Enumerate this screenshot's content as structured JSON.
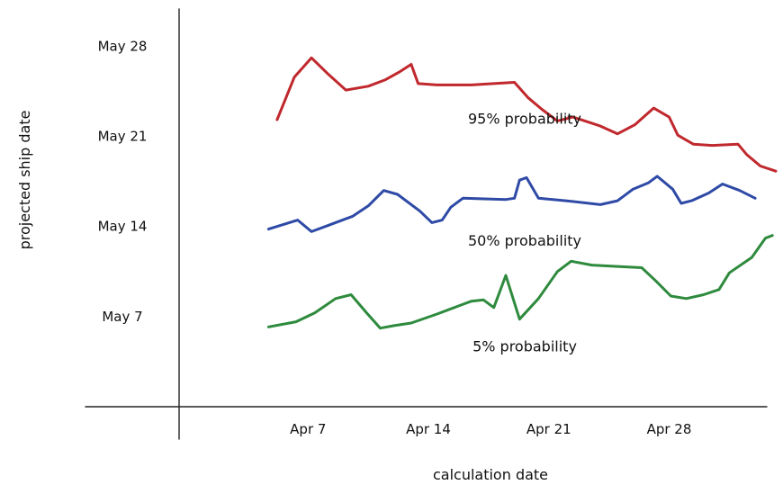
{
  "chart_data": {
    "type": "line",
    "title": "",
    "xlabel": "calculation date",
    "ylabel": "projected ship date",
    "x_ticks": [
      "Apr 7",
      "Apr 14",
      "Apr 21",
      "Apr 28"
    ],
    "y_ticks": [
      "May 7",
      "May 14",
      "May 21",
      "May 28"
    ],
    "x_tick_days": [
      7,
      14,
      21,
      28
    ],
    "y_tick_days": [
      7,
      14,
      21,
      28
    ],
    "xlim": [
      -0.5,
      34.2
    ],
    "ylim": [
      0,
      28.8
    ],
    "grid": false,
    "series": [
      {
        "name": "95% probability",
        "color": "#c0282d",
        "points": [
          [
            5.2,
            22.3
          ],
          [
            6.2,
            25.6
          ],
          [
            7.2,
            27.1
          ],
          [
            8.2,
            25.8
          ],
          [
            9.2,
            24.6
          ],
          [
            10.5,
            24.9
          ],
          [
            11.5,
            25.4
          ],
          [
            12.3,
            26.0
          ],
          [
            13.0,
            26.6
          ],
          [
            13.4,
            25.1
          ],
          [
            14.5,
            25.0
          ],
          [
            16.5,
            25.0
          ],
          [
            19.0,
            25.2
          ],
          [
            19.8,
            24.0
          ],
          [
            20.6,
            23.1
          ],
          [
            21.5,
            22.2
          ],
          [
            22.4,
            22.5
          ],
          [
            24.0,
            21.8
          ],
          [
            25.0,
            21.2
          ],
          [
            26.0,
            21.9
          ],
          [
            27.1,
            23.2
          ],
          [
            28.0,
            22.5
          ],
          [
            28.5,
            21.1
          ],
          [
            29.4,
            20.4
          ],
          [
            30.5,
            20.3
          ],
          [
            32.0,
            20.4
          ],
          [
            32.5,
            19.6
          ],
          [
            33.3,
            18.7
          ],
          [
            34.2,
            18.3
          ]
        ],
        "label_anchor": [
          19.6,
          22.0
        ]
      },
      {
        "name": "50% probability",
        "color": "#2e4aa6",
        "points": [
          [
            4.7,
            13.8
          ],
          [
            6.4,
            14.5
          ],
          [
            7.2,
            13.6
          ],
          [
            8.2,
            14.1
          ],
          [
            9.6,
            14.8
          ],
          [
            10.5,
            15.6
          ],
          [
            11.4,
            16.8
          ],
          [
            12.2,
            16.5
          ],
          [
            13.5,
            15.2
          ],
          [
            14.2,
            14.3
          ],
          [
            14.8,
            14.5
          ],
          [
            15.3,
            15.5
          ],
          [
            16.0,
            16.2
          ],
          [
            18.5,
            16.1
          ],
          [
            19.0,
            16.2
          ],
          [
            19.3,
            17.6
          ],
          [
            19.7,
            17.8
          ],
          [
            20.4,
            16.2
          ],
          [
            22.0,
            16.0
          ],
          [
            24.0,
            15.7
          ],
          [
            25.0,
            16.0
          ],
          [
            25.9,
            16.9
          ],
          [
            26.8,
            17.4
          ],
          [
            27.3,
            17.9
          ],
          [
            28.2,
            16.9
          ],
          [
            28.7,
            15.8
          ],
          [
            29.3,
            16.0
          ],
          [
            30.3,
            16.6
          ],
          [
            31.1,
            17.3
          ],
          [
            32.1,
            16.8
          ],
          [
            33.0,
            16.2
          ]
        ],
        "label_anchor": [
          19.6,
          12.5
        ]
      },
      {
        "name": "5% probability",
        "color": "#2e8a3d",
        "points": [
          [
            4.7,
            6.2
          ],
          [
            6.3,
            6.6
          ],
          [
            7.4,
            7.3
          ],
          [
            8.6,
            8.4
          ],
          [
            9.5,
            8.7
          ],
          [
            10.4,
            7.3
          ],
          [
            11.2,
            6.1
          ],
          [
            12.0,
            6.3
          ],
          [
            13.0,
            6.5
          ],
          [
            14.5,
            7.2
          ],
          [
            15.5,
            7.7
          ],
          [
            16.5,
            8.2
          ],
          [
            17.2,
            8.3
          ],
          [
            17.8,
            7.7
          ],
          [
            18.5,
            10.2
          ],
          [
            19.3,
            6.8
          ],
          [
            20.4,
            8.4
          ],
          [
            21.5,
            10.5
          ],
          [
            22.3,
            11.3
          ],
          [
            23.5,
            11.0
          ],
          [
            25.0,
            10.9
          ],
          [
            26.4,
            10.8
          ],
          [
            27.2,
            9.8
          ],
          [
            28.1,
            8.6
          ],
          [
            29.0,
            8.4
          ],
          [
            30.0,
            8.7
          ],
          [
            30.9,
            9.1
          ],
          [
            31.5,
            10.4
          ],
          [
            32.8,
            11.6
          ],
          [
            33.6,
            13.1
          ],
          [
            34.0,
            13.3
          ]
        ],
        "label_anchor": [
          19.6,
          4.3
        ]
      }
    ]
  }
}
